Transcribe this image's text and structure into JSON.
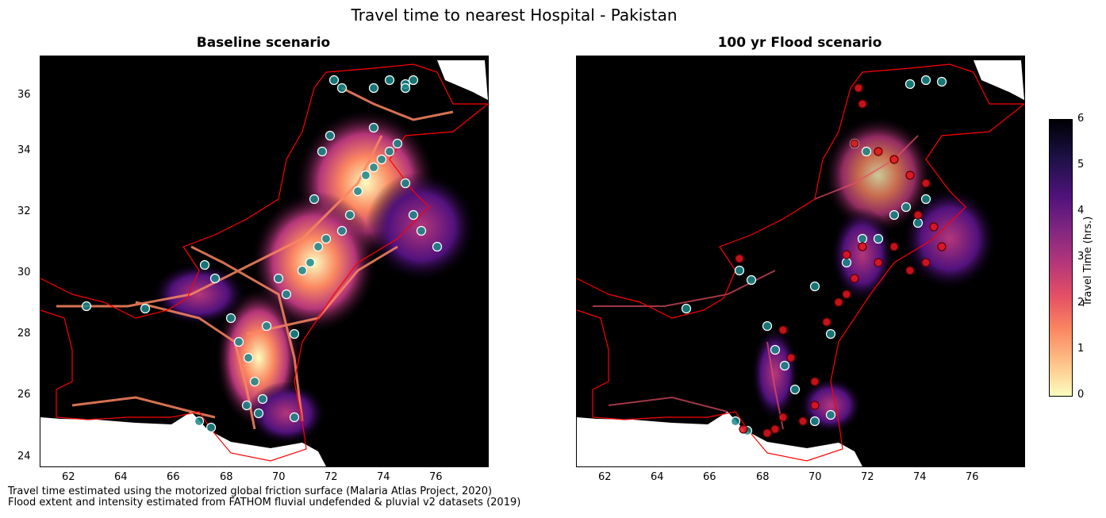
{
  "figure": {
    "title": "Travel time to nearest Hospital - Pakistan",
    "footnotes": [
      "Travel time estimated using the motorized global friction surface (Malaria Atlas Project, 2020)",
      "Flood extent and intensity estimated from FATHOM fluvial undefended & pluvial v2 datasets (2019)"
    ]
  },
  "panels": [
    {
      "title": "Baseline scenario"
    },
    {
      "title": "100 yr Flood scenario"
    }
  ],
  "axes": {
    "x_ticks": [
      "62",
      "64",
      "66",
      "68",
      "70",
      "72",
      "74",
      "76"
    ],
    "y_ticks": [
      "24",
      "26",
      "28",
      "30",
      "32",
      "34",
      "36"
    ],
    "x_range": [
      61,
      78
    ],
    "y_range": [
      23.7,
      37.1
    ]
  },
  "colorbar": {
    "label": "Travel Time (hrs.)",
    "ticks": [
      "0",
      "1",
      "2",
      "3",
      "4",
      "5",
      "6"
    ],
    "colormap": "magma_r",
    "range": [
      0,
      6
    ]
  },
  "colors": {
    "hospital_normal": "#1a8a8a",
    "hospital_flood_affected": "#e8141c",
    "border": "#ff0000",
    "no_data": "#ffffff",
    "unreachable": "#000004"
  }
}
